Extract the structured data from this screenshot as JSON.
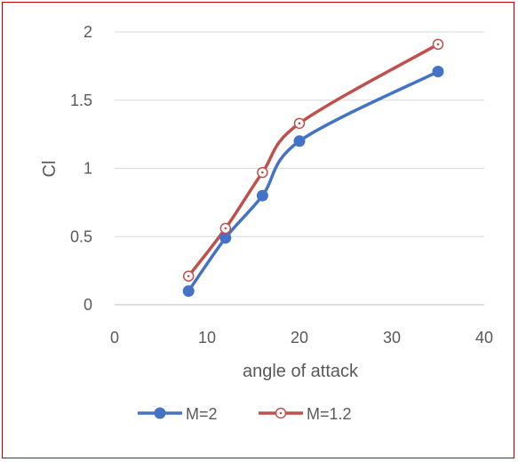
{
  "chart_data": {
    "type": "line",
    "title": "",
    "xlabel": "angle of attack",
    "ylabel": "Cl",
    "xlim": [
      0,
      40
    ],
    "ylim": [
      0,
      2
    ],
    "xticks": [
      "0",
      "10",
      "20",
      "30",
      "40"
    ],
    "yticks": [
      "0",
      "0.5",
      "1",
      "1.5",
      "2"
    ],
    "grid": "horizontal",
    "legend_position": "bottom",
    "smooth": true,
    "series": [
      {
        "name": "M=2",
        "color": "#4472c4",
        "marker": "filled-circle",
        "x": [
          8,
          12,
          16,
          20,
          35
        ],
        "y": [
          0.1,
          0.49,
          0.8,
          1.2,
          1.71
        ]
      },
      {
        "name": "M=1.2",
        "color": "#c0504d",
        "marker": "open-circle-dot",
        "x": [
          8,
          12,
          16,
          20,
          35
        ],
        "y": [
          0.21,
          0.56,
          0.97,
          1.33,
          1.91
        ]
      }
    ]
  }
}
